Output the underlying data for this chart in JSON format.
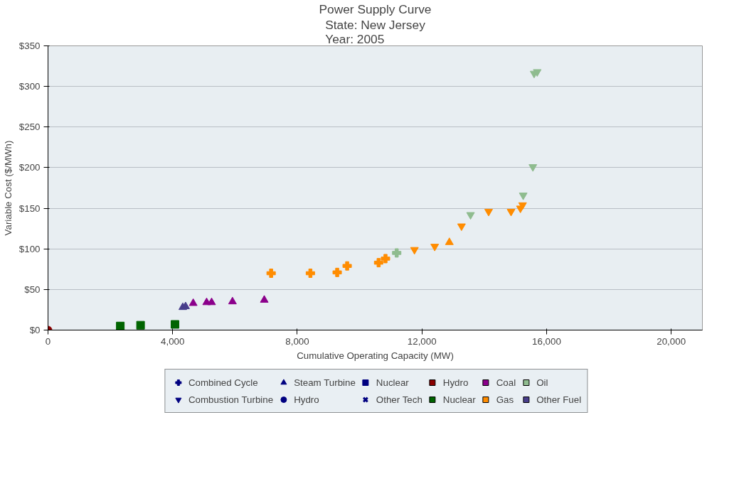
{
  "chart_data": {
    "type": "scatter",
    "title": "Power Supply Curve",
    "subtitle": "State: New Jersey\nYear: 2005",
    "xlabel": "Cumulative Operating Capacity (MW)",
    "ylabel": "Variable Cost ($/MWh)",
    "xlim": [
      0,
      21000
    ],
    "ylim": [
      0,
      350
    ],
    "xticks": [
      0,
      {
        "value": 4000,
        "label": "4,000"
      },
      {
        "value": 8000,
        "label": "8,000"
      },
      {
        "value": 12000,
        "label": "12,000"
      },
      {
        "value": 16000,
        "label": "16,000"
      },
      {
        "value": 20000,
        "label": "20,000"
      }
    ],
    "yticks": [
      {
        "value": 0,
        "label": "$0"
      },
      {
        "value": 50,
        "label": "$50"
      },
      {
        "value": 100,
        "label": "$100"
      },
      {
        "value": 150,
        "label": "$150"
      },
      {
        "value": 200,
        "label": "$200"
      },
      {
        "value": 250,
        "label": "$250"
      },
      {
        "value": 300,
        "label": "$300"
      },
      {
        "value": 350,
        "label": "$350"
      }
    ],
    "grid": "y",
    "legend": "bottom",
    "series": [
      {
        "type": "scatter",
        "marker": "circle",
        "color": "#8b0000",
        "x": [
          0
        ],
        "values": [
          0
        ]
      },
      {
        "type": "scatter",
        "marker": "square",
        "color": "#006400",
        "x": [
          2320,
          2970,
          4075
        ],
        "values": [
          5,
          6,
          7
        ]
      },
      {
        "type": "scatter",
        "marker": "triangle",
        "color": "#483d8b",
        "x": [
          4325,
          4415
        ],
        "values": [
          28,
          29
        ]
      },
      {
        "type": "scatter",
        "marker": "triangle",
        "color": "#8b008b",
        "x": [
          4660,
          5090,
          5250,
          5920,
          6940
        ],
        "values": [
          33,
          34,
          34,
          35,
          37
        ]
      },
      {
        "type": "scatter",
        "marker": "cross",
        "color": "#ff8c00",
        "x": [
          7160,
          8420,
          9280,
          9600,
          10610,
          10830
        ],
        "values": [
          70,
          70,
          71,
          79,
          83,
          88
        ]
      },
      {
        "type": "scatter",
        "marker": "cross",
        "color": "#8fbc8f",
        "x": [
          11190
        ],
        "values": [
          95
        ]
      },
      {
        "color": "#ff8c00",
        "x": [
          11760,
          12410,
          13270,
          14140,
          14860,
          15160,
          15230
        ],
        "values": [
          99,
          103,
          128,
          146,
          146,
          150,
          154
        ]
      },
      {
        "type": "scatter",
        "marker": "triangle",
        "color": "#ff8c00",
        "x": [
          12880
        ],
        "values": [
          108
        ]
      },
      {
        "color": "#8fbc8f",
        "x": [
          13560,
          15250,
          15560,
          15600,
          15700
        ],
        "values": [
          142,
          166,
          201,
          316,
          318
        ]
      },
      {
        "marker": "cross",
        "color": "#000080",
        "name": "Combined Cycle"
      },
      {
        "color": "#000080",
        "name": "Combustion Turbine"
      },
      {
        "marker": "triangle",
        "color": "#000080",
        "name": "Steam Turbine"
      },
      {
        "marker": "circle",
        "color": "#000080",
        "name": "Hydro"
      },
      {
        "marker": "square",
        "color": "#000080",
        "name": "Nuclear"
      },
      {
        "marker": "x",
        "color": "#000080",
        "name": "Other Tech"
      },
      {
        "marker": "square",
        "color": "#8b0000",
        "name": "Hydro"
      },
      {
        "marker": "square",
        "color": "#006400",
        "name": "Nuclear"
      },
      {
        "marker": "square",
        "color": "#8b008b",
        "name": "Coal"
      },
      {
        "marker": "square",
        "color": "#ff8c00",
        "name": "Gas"
      },
      {
        "marker": "square",
        "color": "#8fbc8f",
        "name": "Oil"
      },
      {
        "marker": "square",
        "color": "#483d8b",
        "name": "Other Fuel"
      }
    ]
  }
}
